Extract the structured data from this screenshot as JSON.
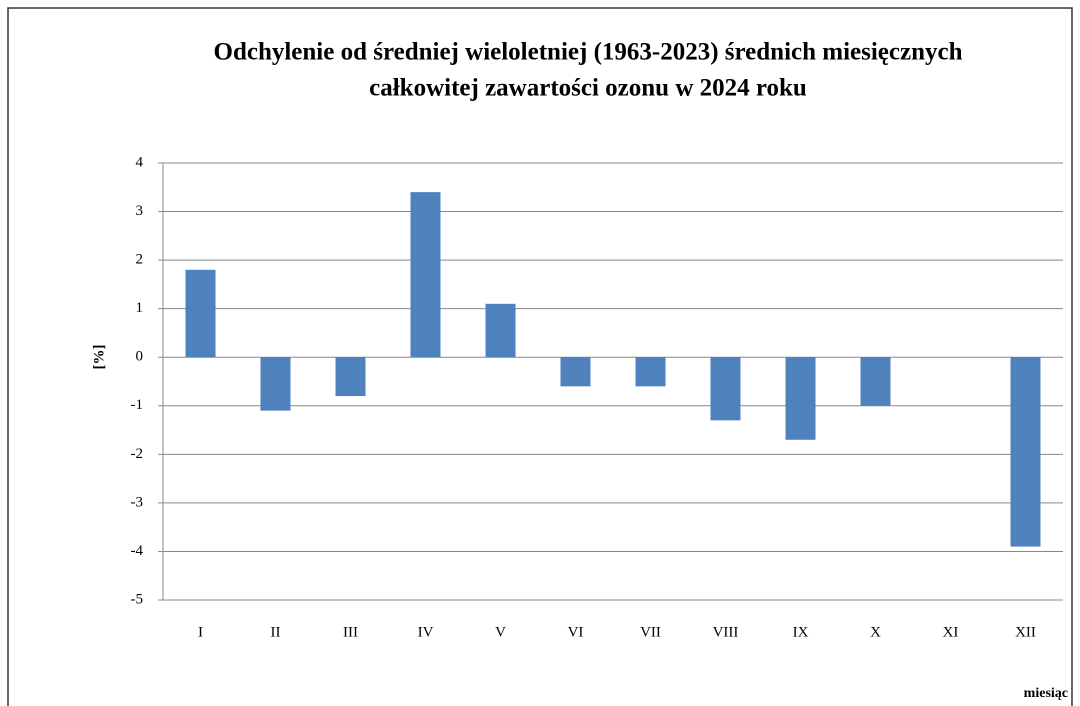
{
  "chart_data": {
    "type": "bar",
    "title": [
      "Odchylenie od średniej wieloletniej (1963-2023) średnich miesięcznych",
      "całkowitej zawartości ozonu w 2024 roku"
    ],
    "y_label": "[%]",
    "x_label": "miesiąc",
    "categories": [
      "I",
      "II",
      "III",
      "IV",
      "V",
      "VI",
      "VII",
      "VIII",
      "IX",
      "X",
      "XI",
      "XII"
    ],
    "values": [
      1.8,
      -1.1,
      -0.8,
      3.4,
      1.1,
      -0.6,
      -0.6,
      -1.3,
      -1.7,
      -1.0,
      0,
      -3.9
    ],
    "color": "#4f81bd",
    "ylim": [
      -5,
      4
    ],
    "yticks": [
      -5,
      -4,
      -3,
      -2,
      -1,
      0,
      1,
      2,
      3,
      4
    ],
    "grid": true
  }
}
